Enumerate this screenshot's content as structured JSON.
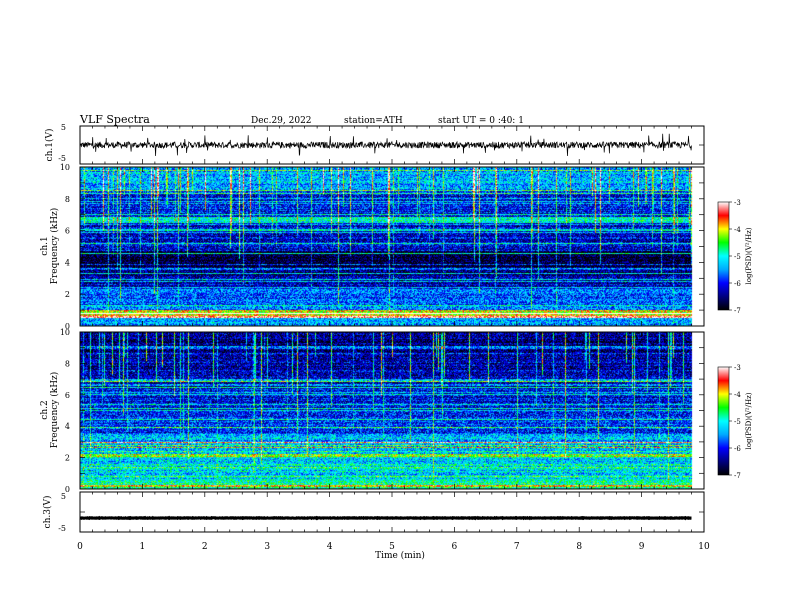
{
  "header": {
    "title": "VLF  Spectra",
    "date": "Dec.29, 2022",
    "station": "station=ATH",
    "start_ut": "start  UT  =   0  :40: 1"
  },
  "chart_data": [
    {
      "type": "line",
      "name": "ch1-waveform",
      "ylabel": "ch.1(V)",
      "ylim": [
        -5,
        5
      ],
      "yticks": [
        "5",
        "-5"
      ],
      "xlim": [
        0,
        10
      ],
      "description_values": {
        "baseline_V": 0.0,
        "noise_amplitude_V": 1.2,
        "data_end_min": 9.8
      }
    },
    {
      "type": "heatmap",
      "name": "ch1-spectrogram",
      "ylabel_channel": "ch.1",
      "ylabel": "Frequency  (kHz)",
      "ylim": [
        0,
        10
      ],
      "yticks": [
        "0",
        "2",
        "4",
        "6",
        "8",
        "10"
      ],
      "xlim": [
        0,
        10
      ],
      "data_end_min": 9.8,
      "colorbar": {
        "label": "log(PSD)(V²/Hz)",
        "range": [
          -7,
          -3
        ],
        "ticks": [
          "-3",
          "-4",
          "-5",
          "-6",
          "-7"
        ],
        "colors": [
          "#000000",
          "#000080",
          "#0000ff",
          "#00aaff",
          "#00ffff",
          "#00ff00",
          "#ffff00",
          "#ff0000",
          "#ffffff"
        ]
      },
      "bands": [
        {
          "f_low": 0.0,
          "f_high": 0.5,
          "level": -5.5
        },
        {
          "f_low": 0.5,
          "f_high": 1.0,
          "level": -4.0
        },
        {
          "f_low": 1.0,
          "f_high": 2.3,
          "level": -5.7
        },
        {
          "f_low": 2.3,
          "f_high": 3.0,
          "level": -6.2
        },
        {
          "f_low": 3.0,
          "f_high": 3.7,
          "level": -6.5
        },
        {
          "f_low": 3.7,
          "f_high": 4.8,
          "level": -6.9
        },
        {
          "f_low": 4.8,
          "f_high": 6.5,
          "level": -6.2
        },
        {
          "f_low": 6.5,
          "f_high": 6.8,
          "level": -5.0
        },
        {
          "f_low": 6.8,
          "f_high": 8.5,
          "level": -6.0
        },
        {
          "f_low": 8.5,
          "f_high": 10.0,
          "level": -5.4
        }
      ]
    },
    {
      "type": "heatmap",
      "name": "ch2-spectrogram",
      "ylabel_channel": "ch.2",
      "ylabel": "Frequency  (kHz)",
      "ylim": [
        0,
        10
      ],
      "yticks": [
        "0",
        "2",
        "4",
        "6",
        "8",
        "10"
      ],
      "xlim": [
        0,
        10
      ],
      "data_end_min": 9.8,
      "colorbar": {
        "label": "log(PSD)(V²/Hz)",
        "range": [
          -7,
          -3
        ],
        "ticks": [
          "-3",
          "-4",
          "-5",
          "-6",
          "-7"
        ],
        "colors": [
          "#000000",
          "#000080",
          "#0000ff",
          "#00aaff",
          "#00ffff",
          "#00ff00",
          "#ffff00",
          "#ff0000",
          "#ffffff"
        ]
      },
      "bands": [
        {
          "f_low": 0.0,
          "f_high": 0.6,
          "level": -4.8
        },
        {
          "f_low": 0.6,
          "f_high": 2.0,
          "level": -5.2
        },
        {
          "f_low": 2.0,
          "f_high": 2.2,
          "level": -4.2
        },
        {
          "f_low": 2.2,
          "f_high": 3.5,
          "level": -5.4
        },
        {
          "f_low": 3.5,
          "f_high": 5.0,
          "level": -5.9
        },
        {
          "f_low": 5.0,
          "f_high": 6.5,
          "level": -6.1
        },
        {
          "f_low": 6.5,
          "f_high": 8.5,
          "level": -6.3
        },
        {
          "f_low": 8.5,
          "f_high": 10.0,
          "level": -6.5
        }
      ]
    },
    {
      "type": "line",
      "name": "ch3-waveform",
      "ylabel": "ch.3(V)",
      "ylim": [
        -5,
        5
      ],
      "yticks": [
        "5",
        "-5"
      ],
      "xlim": [
        0,
        10
      ],
      "description_values": {
        "baseline_V": -1.5,
        "noise_amplitude_V": 0.3,
        "data_end_min": 9.8
      }
    }
  ],
  "xaxis": {
    "label": "Time  (min)",
    "ticks": [
      "0",
      "1",
      "2",
      "3",
      "4",
      "5",
      "6",
      "7",
      "8",
      "9",
      "10"
    ],
    "range": [
      0,
      10
    ]
  }
}
